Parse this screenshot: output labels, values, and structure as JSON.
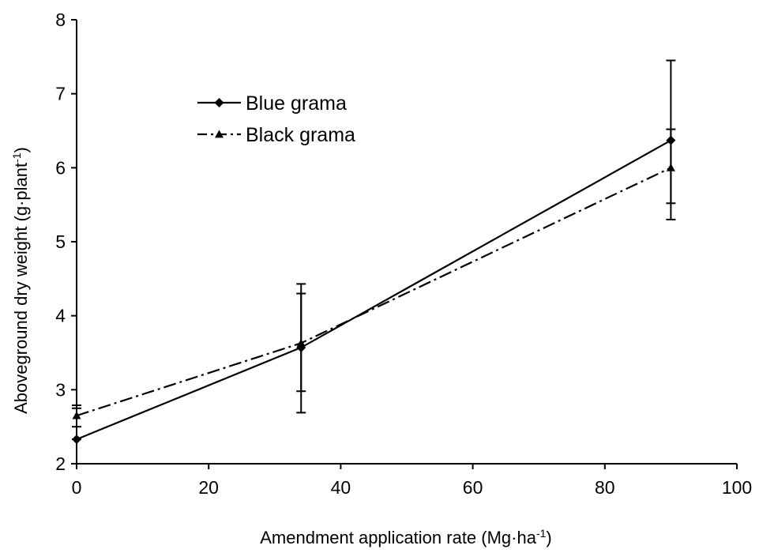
{
  "chart_data": {
    "type": "line",
    "title": "",
    "xlabel": "Amendment application rate (Mg·ha",
    "xlabel_sup": "-1",
    "xlabel_end": ")",
    "ylabel": "Aboveground dry weight (g·plant",
    "ylabel_sup": "-1",
    "ylabel_end": ")",
    "xlim": [
      0,
      100
    ],
    "ylim": [
      2,
      8
    ],
    "xticks": [
      "0",
      "20",
      "40",
      "60",
      "80",
      "100"
    ],
    "yticks": [
      "2",
      "3",
      "4",
      "5",
      "6",
      "7",
      "8"
    ],
    "grid": false,
    "legend_position": "top-left",
    "series": [
      {
        "name": "Blue grama",
        "marker": "diamond",
        "line_style": "solid",
        "x": [
          0,
          34,
          90
        ],
        "y": [
          2.33,
          3.57,
          6.37
        ],
        "error_low": [
          2.33,
          2.69,
          5.3
        ],
        "error_high": [
          2.75,
          4.43,
          7.45
        ]
      },
      {
        "name": "Black grama",
        "marker": "triangle",
        "line_style": "dash-dot",
        "x": [
          0,
          34,
          90
        ],
        "y": [
          2.65,
          3.63,
          6.0
        ],
        "error_low": [
          2.5,
          2.98,
          5.52
        ],
        "error_high": [
          2.79,
          4.3,
          6.52
        ]
      }
    ]
  }
}
